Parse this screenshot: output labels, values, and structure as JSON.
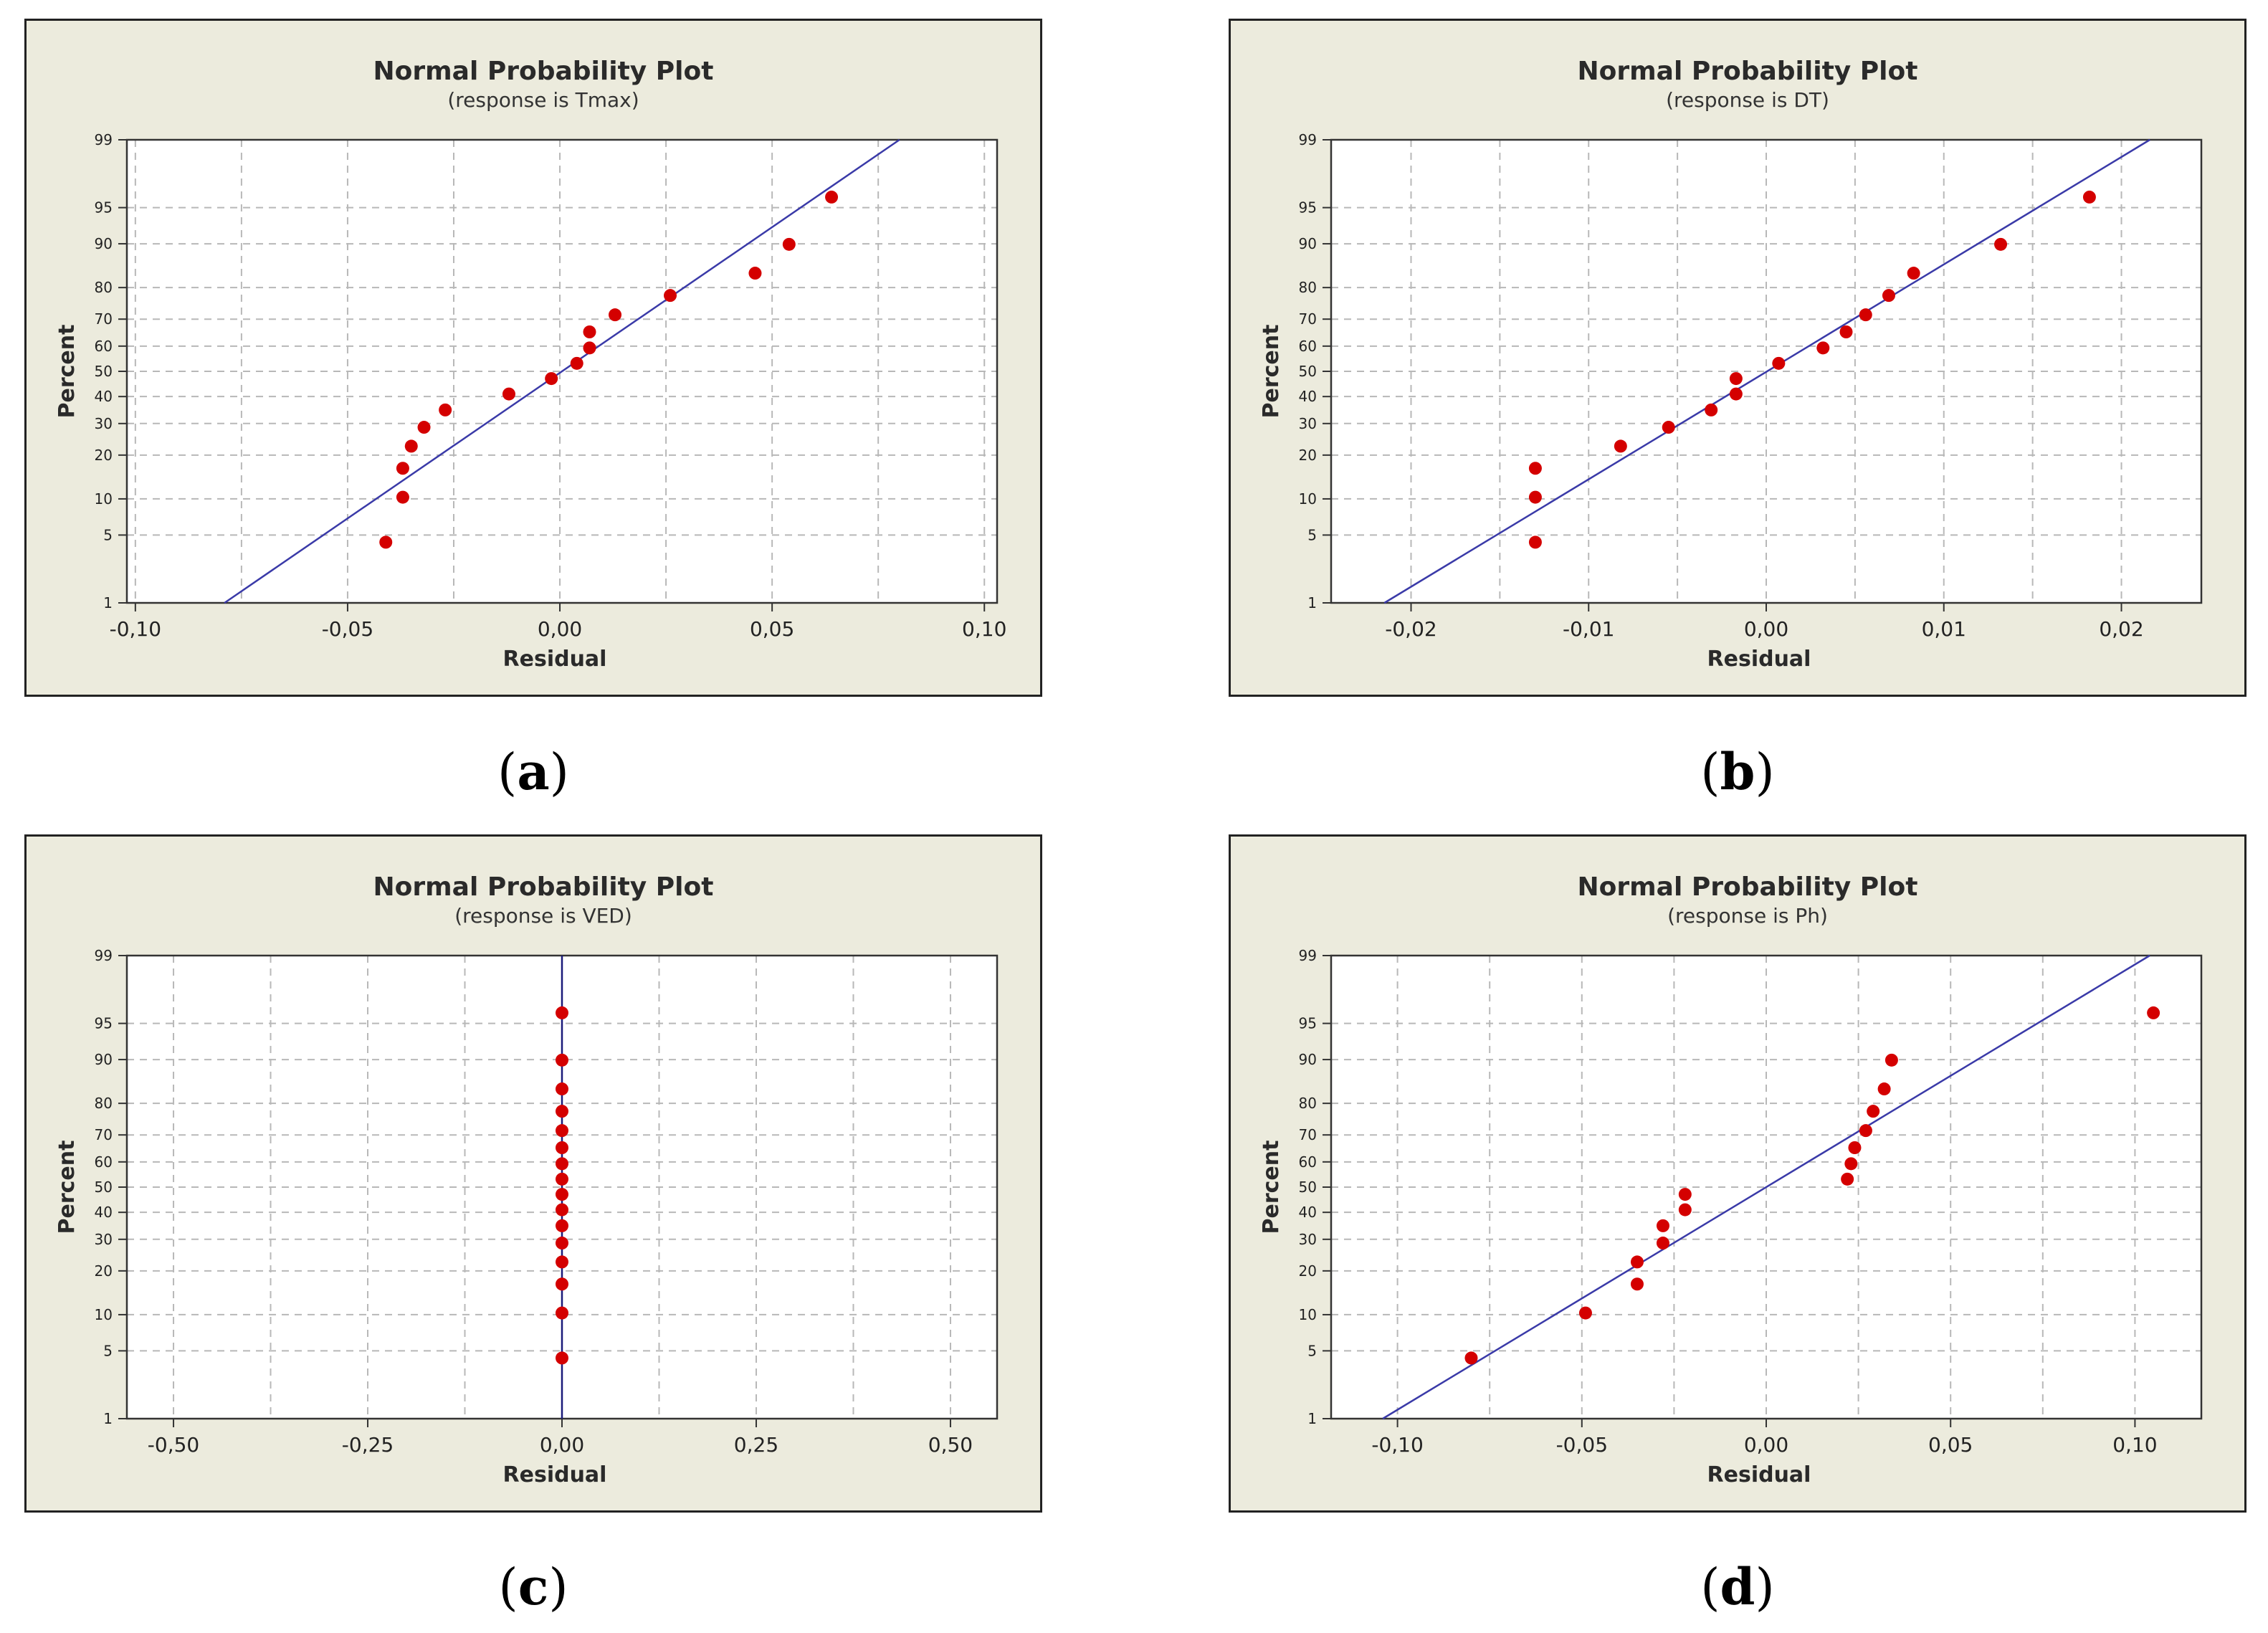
{
  "chart_data": [
    {
      "id": "a",
      "type": "scatter",
      "title": "Normal Probability Plot",
      "subtitle": "(response is Tmax)",
      "xlabel": "Residual",
      "ylabel": "Percent",
      "caption_letter": "a",
      "xlim": [
        -0.102,
        0.103
      ],
      "x_ticks": [
        -0.1,
        -0.05,
        0.0,
        0.05,
        0.1
      ],
      "x_tick_labels": [
        "-0,10",
        "-0,05",
        "0,00",
        "0,05",
        "0,10"
      ],
      "x_minor_ticks": [
        -0.075,
        -0.025,
        0.025,
        0.075
      ],
      "y_scale": "normal-probability",
      "y_ticks": [
        1,
        5,
        10,
        20,
        30,
        40,
        50,
        60,
        70,
        80,
        90,
        95,
        99
      ],
      "y_tick_labels": [
        "1",
        "5",
        "10",
        "20",
        "30",
        "40",
        "50",
        "60",
        "70",
        "80",
        "90",
        "95",
        "99"
      ],
      "grid": true,
      "fit_line": {
        "x": [
          -0.079,
          0.08
        ],
        "y": [
          1,
          99
        ],
        "color": "#3a3aa8"
      },
      "points": {
        "color": "#d40000",
        "x": [
          -0.041,
          -0.037,
          -0.037,
          -0.035,
          -0.032,
          -0.027,
          -0.012,
          -0.002,
          0.004,
          0.007,
          0.007,
          0.013,
          0.026,
          0.046,
          0.054,
          0.064
        ],
        "y": [
          4.3,
          10.3,
          16.5,
          22.6,
          28.7,
          34.9,
          41.0,
          47.1,
          53.2,
          59.3,
          65.4,
          71.5,
          77.7,
          83.8,
          89.9,
          96.0
        ]
      }
    },
    {
      "id": "b",
      "type": "scatter",
      "title": "Normal Probability Plot",
      "subtitle": "(response is DT)",
      "xlabel": "Residual",
      "ylabel": "Percent",
      "caption_letter": "b",
      "xlim": [
        -0.0245,
        0.0245
      ],
      "x_ticks": [
        -0.02,
        -0.01,
        0.0,
        0.01,
        0.02
      ],
      "x_tick_labels": [
        "-0,02",
        "-0,01",
        "0,00",
        "0,01",
        "0,02"
      ],
      "x_minor_ticks": [
        -0.015,
        -0.005,
        0.005,
        0.015
      ],
      "y_scale": "normal-probability",
      "y_ticks": [
        1,
        5,
        10,
        20,
        30,
        40,
        50,
        60,
        70,
        80,
        90,
        95,
        99
      ],
      "y_tick_labels": [
        "1",
        "5",
        "10",
        "20",
        "30",
        "40",
        "50",
        "60",
        "70",
        "80",
        "90",
        "95",
        "99"
      ],
      "grid": true,
      "fit_line": {
        "x": [
          -0.0215,
          0.0216
        ],
        "y": [
          1,
          99
        ],
        "color": "#3a3aa8"
      },
      "points": {
        "color": "#d40000",
        "x": [
          -0.013,
          -0.013,
          -0.013,
          -0.0082,
          -0.0055,
          -0.0031,
          -0.0017,
          -0.0017,
          0.0007,
          0.0032,
          0.0045,
          0.0056,
          0.0069,
          0.0083,
          0.0132,
          0.0182
        ],
        "y": [
          4.3,
          10.3,
          16.5,
          22.6,
          28.7,
          34.9,
          41.0,
          47.1,
          53.2,
          59.3,
          65.4,
          71.5,
          77.7,
          83.8,
          89.9,
          96.0
        ]
      }
    },
    {
      "id": "c",
      "type": "scatter",
      "title": "Normal Probability Plot",
      "subtitle": "(response is VED)",
      "xlabel": "Residual",
      "ylabel": "Percent",
      "caption_letter": "c",
      "xlim": [
        -0.56,
        0.56
      ],
      "x_ticks": [
        -0.5,
        -0.25,
        0.0,
        0.25,
        0.5
      ],
      "x_tick_labels": [
        "-0,50",
        "-0,25",
        "0,00",
        "0,25",
        "0,50"
      ],
      "x_minor_ticks": [
        -0.375,
        -0.125,
        0.125,
        0.375
      ],
      "y_scale": "normal-probability",
      "y_ticks": [
        1,
        5,
        10,
        20,
        30,
        40,
        50,
        60,
        70,
        80,
        90,
        95,
        99
      ],
      "y_tick_labels": [
        "1",
        "5",
        "10",
        "20",
        "30",
        "40",
        "50",
        "60",
        "70",
        "80",
        "90",
        "95",
        "99"
      ],
      "grid": true,
      "fit_line": {
        "x": [
          0.0,
          0.0
        ],
        "y": [
          1,
          99
        ],
        "color": "#1a1a7a"
      },
      "points": {
        "color": "#d40000",
        "x": [
          0,
          0,
          0,
          0,
          0,
          0,
          0,
          0,
          0,
          0,
          0,
          0,
          0,
          0,
          0,
          0
        ],
        "y": [
          4.3,
          10.3,
          16.5,
          22.6,
          28.7,
          34.9,
          41.0,
          47.1,
          53.2,
          59.3,
          65.4,
          71.5,
          77.7,
          83.8,
          89.9,
          96.0
        ]
      }
    },
    {
      "id": "d",
      "type": "scatter",
      "title": "Normal Probability Plot",
      "subtitle": "(response is Ph)",
      "xlabel": "Residual",
      "ylabel": "Percent",
      "caption_letter": "d",
      "xlim": [
        -0.118,
        0.118
      ],
      "x_ticks": [
        -0.1,
        -0.05,
        0.0,
        0.05,
        0.1
      ],
      "x_tick_labels": [
        "-0,10",
        "-0,05",
        "0,00",
        "0,05",
        "0,10"
      ],
      "x_minor_ticks": [
        -0.075,
        -0.025,
        0.025,
        0.075
      ],
      "y_scale": "normal-probability",
      "y_ticks": [
        1,
        5,
        10,
        20,
        30,
        40,
        50,
        60,
        70,
        80,
        90,
        95,
        99
      ],
      "y_tick_labels": [
        "1",
        "5",
        "10",
        "20",
        "30",
        "40",
        "50",
        "60",
        "70",
        "80",
        "90",
        "95",
        "99"
      ],
      "grid": true,
      "fit_line": {
        "x": [
          -0.104,
          0.104
        ],
        "y": [
          1,
          99
        ],
        "color": "#3a3aa8"
      },
      "points": {
        "color": "#d40000",
        "x": [
          -0.08,
          -0.049,
          -0.035,
          -0.035,
          -0.028,
          -0.028,
          -0.022,
          -0.022,
          0.022,
          0.023,
          0.024,
          0.027,
          0.029,
          0.032,
          0.034,
          0.105
        ],
        "y": [
          4.3,
          10.3,
          16.5,
          22.6,
          28.7,
          34.9,
          41.0,
          47.1,
          53.2,
          59.3,
          65.4,
          71.5,
          77.7,
          83.8,
          89.9,
          96.0
        ]
      }
    }
  ]
}
